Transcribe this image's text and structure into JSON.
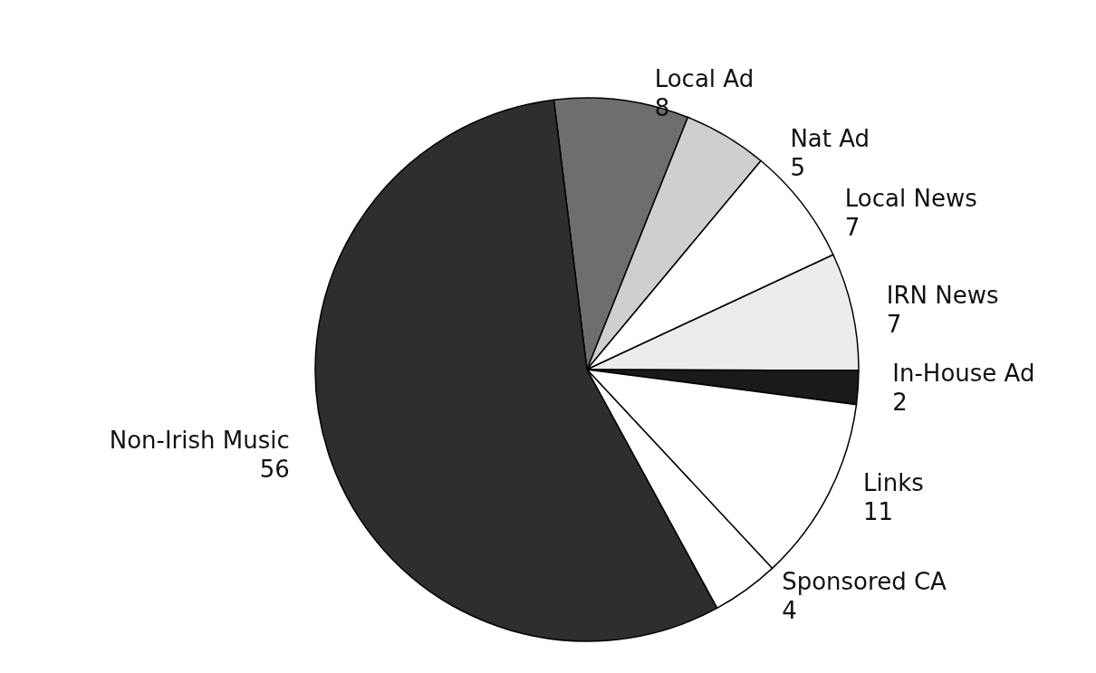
{
  "chart_data": {
    "type": "pie",
    "categories": [
      "Local Ad",
      "Nat Ad",
      "Local News",
      "IRN News",
      "In-House Ad",
      "Links",
      "Sponsored CA",
      "Non-Irish Music"
    ],
    "values": [
      8,
      5,
      7,
      7,
      2,
      11,
      4,
      56
    ],
    "colors": [
      "#6e6e6e",
      "#cfcfcf",
      "#ffffff",
      "#ececec",
      "#1a1a1a",
      "#ffffff",
      "#ffffff",
      "#2e2e2e"
    ],
    "data_labels": true,
    "legend": false
  }
}
